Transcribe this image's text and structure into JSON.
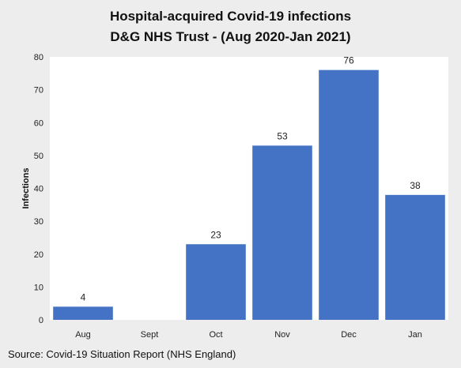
{
  "page": {
    "background": "#ededed",
    "source_note": "Source: Covid-19 Situation Report (NHS England)"
  },
  "chart_data": {
    "type": "bar",
    "title": "Hospital-acquired Covid-19 infections",
    "subtitle": "D&G NHS Trust - (Aug 2020-Jan 2021)",
    "xlabel": "",
    "ylabel": "Infections",
    "categories": [
      "Aug",
      "Sept",
      "Oct",
      "Nov",
      "Dec",
      "Jan"
    ],
    "values": [
      4,
      null,
      23,
      53,
      76,
      38
    ],
    "data_labels": [
      "4",
      "",
      "23",
      "53",
      "76",
      "38"
    ],
    "ylim": [
      0,
      80
    ],
    "yticks": [
      0,
      10,
      20,
      30,
      40,
      50,
      60,
      70,
      80
    ],
    "grid": false,
    "legend": "none",
    "bar_color": "#4472c4",
    "plot_background": "#ffffff"
  }
}
